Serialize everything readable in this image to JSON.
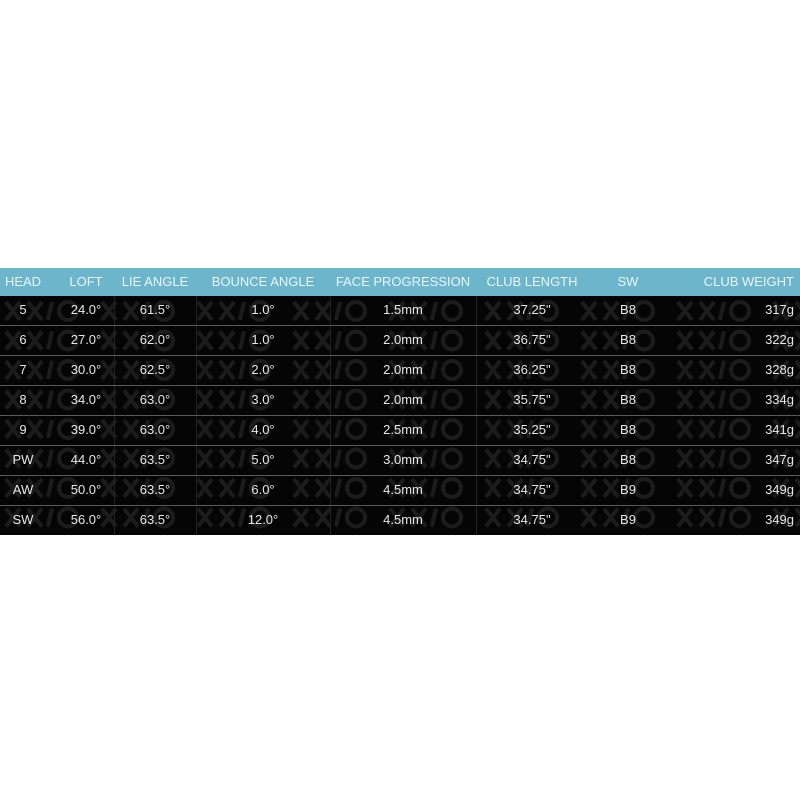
{
  "colors": {
    "header": "#6cb5cb",
    "body": "#050505",
    "watermark": "#1c1c1c"
  },
  "watermark": "XXIO",
  "headers": [
    "HEAD",
    "LOFT",
    "LIE ANGLE",
    "BOUNCE ANGLE",
    "FACE PROGRESSION",
    "CLUB LENGTH",
    "SW",
    "CLUB WEIGHT"
  ],
  "rows": [
    [
      "5",
      "24.0°",
      "61.5°",
      "1.0°",
      "1.5mm",
      "37.25\"",
      "B8",
      "317g"
    ],
    [
      "6",
      "27.0°",
      "62.0°",
      "1.0°",
      "2.0mm",
      "36.75\"",
      "B8",
      "322g"
    ],
    [
      "7",
      "30.0°",
      "62.5°",
      "2.0°",
      "2.0mm",
      "36.25\"",
      "B8",
      "328g"
    ],
    [
      "8",
      "34.0°",
      "63.0°",
      "3.0°",
      "2.0mm",
      "35.75\"",
      "B8",
      "334g"
    ],
    [
      "9",
      "39.0°",
      "63.0°",
      "4.0°",
      "2.5mm",
      "35.25\"",
      "B8",
      "341g"
    ],
    [
      "PW",
      "44.0°",
      "63.5°",
      "5.0°",
      "3.0mm",
      "34.75\"",
      "B8",
      "347g"
    ],
    [
      "AW",
      "50.0°",
      "63.5°",
      "6.0°",
      "4.5mm",
      "34.75\"",
      "B9",
      "349g"
    ],
    [
      "SW",
      "56.0°",
      "63.5°",
      "12.0°",
      "4.5mm",
      "34.75\"",
      "B9",
      "349g"
    ]
  ]
}
